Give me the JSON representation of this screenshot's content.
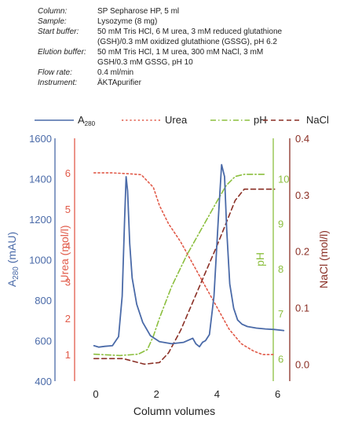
{
  "info": [
    {
      "key": "Column:",
      "value": "SP Sepharose HP, 5 ml"
    },
    {
      "key": "Sample:",
      "value": "Lysozyme (8 mg)"
    },
    {
      "key": "Start buffer:",
      "value": "50 mM Tris HCl,  6 M urea, 3 mM reduced glutathione"
    },
    {
      "key": "",
      "value": "(GSH)/0.3 mM oxidized glutathione (GSSG), pH 6.2"
    },
    {
      "key": "Elution buffer:",
      "value": "50 mM Tris HCl, 1 M urea, 300 mM NaCl, 3 mM"
    },
    {
      "key": "",
      "value": "GSH/0.3 mM GSSG, pH 10"
    },
    {
      "key": "Flow rate:",
      "value": "0.4 ml/min"
    },
    {
      "key": "Instrument:",
      "value": "ÄKTApurifier"
    }
  ],
  "chart_data": {
    "type": "line",
    "xlabel": "Column volumes",
    "xlim": [
      -0.7,
      6.4
    ],
    "xticks": [
      "0",
      "2",
      "4",
      "6"
    ],
    "legend": {
      "placement": "top",
      "entries": [
        {
          "label_main": "A",
          "label_sub": "280",
          "color": "#4a6aa8",
          "dash": "solid"
        },
        {
          "label_main": "Urea",
          "label_sub": "",
          "color": "#e15b4a",
          "dash": "dotted"
        },
        {
          "label_main": "pH",
          "label_sub": "",
          "color": "#8cbf3f",
          "dash": "dashdot"
        },
        {
          "label_main": "NaCl",
          "label_sub": "",
          "color": "#8a2f25",
          "dash": "dashed"
        }
      ]
    },
    "axes": {
      "a280": {
        "label_main": "A",
        "label_sub": "280",
        "label_rest": " (mAU)",
        "ylim": [
          400,
          1600
        ],
        "ticks": [
          "400",
          "600",
          "800",
          "1000",
          "1200",
          "1400",
          "1600"
        ],
        "color": "#4a6aa8"
      },
      "urea": {
        "label": "Urea (mol/l)",
        "ylim": [
          0.27,
          6.95
        ],
        "ticks": [
          "1",
          "2",
          "3",
          "4",
          "5",
          "6"
        ],
        "color": "#e15b4a"
      },
      "ph": {
        "label": "pH",
        "ylim": [
          5.5,
          10.9
        ],
        "ticks": [
          "6",
          "7",
          "8",
          "9",
          "10"
        ],
        "color": "#8cbf3f"
      },
      "nacl": {
        "label": "NaCl (mol/l)",
        "ylim": [
          -0.03,
          0.4
        ],
        "ticks": [
          "0.0",
          "0.1",
          "0.2",
          "0.3",
          "0.4"
        ],
        "color": "#8a2f25"
      }
    },
    "series": [
      {
        "name": "A280",
        "axis": "a280",
        "color": "#4a6aa8",
        "dash": "solid",
        "x": [
          -0.06,
          0.1,
          0.3,
          0.55,
          0.75,
          0.87,
          0.95,
          1.0,
          1.05,
          1.12,
          1.2,
          1.35,
          1.55,
          1.8,
          2.1,
          2.5,
          2.9,
          3.2,
          3.3,
          3.42,
          3.52,
          3.62,
          3.75,
          3.9,
          4.05,
          4.15,
          4.25,
          4.32,
          4.42,
          4.55,
          4.68,
          4.82,
          5.0,
          5.3,
          5.6,
          5.9,
          6.2
        ],
        "y": [
          575,
          568,
          572,
          575,
          620,
          820,
          1200,
          1410,
          1340,
          1080,
          910,
          780,
          690,
          625,
          595,
          585,
          592,
          612,
          585,
          570,
          592,
          600,
          630,
          820,
          1220,
          1470,
          1410,
          1150,
          880,
          760,
          702,
          682,
          670,
          662,
          658,
          655,
          650
        ]
      },
      {
        "name": "Urea",
        "axis": "urea",
        "color": "#e15b4a",
        "dash": "dotted",
        "x": [
          -0.06,
          0.5,
          1.0,
          1.5,
          1.9,
          2.1,
          2.4,
          2.8,
          3.2,
          3.6,
          4.0,
          4.4,
          4.8,
          5.2,
          5.5,
          5.9
        ],
        "y": [
          6.0,
          6.0,
          5.98,
          5.95,
          5.6,
          5.1,
          4.6,
          4.1,
          3.5,
          2.9,
          2.3,
          1.7,
          1.3,
          1.1,
          1.0,
          1.0
        ]
      },
      {
        "name": "pH",
        "axis": "ph",
        "color": "#8cbf3f",
        "dash": "dashdot",
        "x": [
          -0.06,
          0.8,
          1.4,
          1.7,
          1.9,
          2.1,
          2.5,
          3.0,
          3.5,
          4.0,
          4.3,
          4.6,
          4.9,
          5.3,
          5.6
        ],
        "y": [
          6.1,
          6.07,
          6.1,
          6.2,
          6.5,
          6.9,
          7.6,
          8.3,
          8.9,
          9.5,
          9.85,
          10.05,
          10.1,
          10.1,
          10.1
        ]
      },
      {
        "name": "NaCl",
        "axis": "nacl",
        "color": "#8a2f25",
        "dash": "dashed",
        "x": [
          -0.06,
          0.9,
          1.6,
          2.1,
          2.4,
          2.8,
          3.2,
          3.6,
          4.0,
          4.3,
          4.6,
          4.9,
          5.2,
          5.5,
          5.9
        ],
        "y": [
          0.01,
          0.01,
          0.0,
          0.003,
          0.02,
          0.06,
          0.11,
          0.16,
          0.21,
          0.25,
          0.29,
          0.31,
          0.31,
          0.31,
          0.31
        ]
      }
    ]
  }
}
